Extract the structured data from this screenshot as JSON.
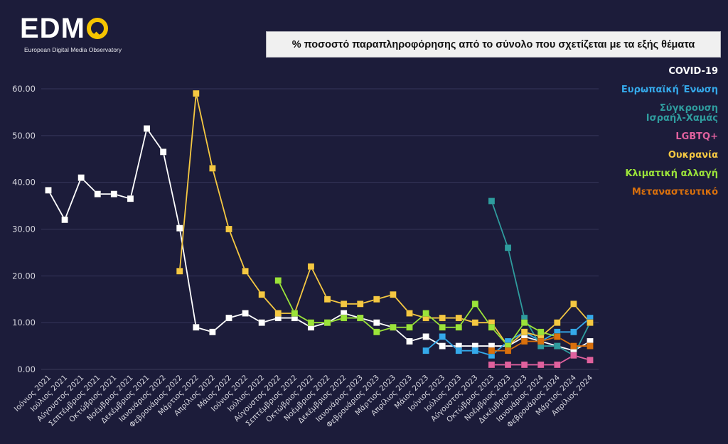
{
  "logo": {
    "text": "EDM",
    "subtitle": "European Digital Media Observatory"
  },
  "chart_data": {
    "type": "line",
    "title": "% ποσοστό παραπληροφόρησης από το σύνολο που σχετίζεται με τα εξής θέματα",
    "xlabel": "",
    "ylabel": "",
    "ylim": [
      0,
      60
    ],
    "yticks": [
      "0.00",
      "10.00",
      "20.00",
      "30.00",
      "40.00",
      "50.00",
      "60.00"
    ],
    "grid": true,
    "legend_position": "right",
    "categories": [
      "Ιούνιος 2021",
      "Ιούλιος 2021",
      "Αύγουστος 2021",
      "Σεπτέμβριος 2021",
      "Οκτώβριος 2021",
      "Νοέμβριος 2021",
      "Δεκέμβριος 2021",
      "Ιανουάριος 2022",
      "Φεβρουάριος 2022",
      "Μάρτιος 2022",
      "Απρίλιος 2022",
      "Μάιος 2022",
      "Ιούνιος 2022",
      "Ιούλιος 2022",
      "Αύγουστος 2022",
      "Σεπτέμβριος 2022",
      "Οκτώβριος 2022",
      "Νοέμβριος 2022",
      "Δεκέμβριος 2022",
      "Ιανουάριος 2023",
      "Φεβρουάριος 2023",
      "Μάρτιος 2023",
      "Απρίλιος 2023",
      "Μάιος 2023",
      "Ιούνιος 2023",
      "Ιούλιος 2023",
      "Αύγουστος 2023",
      "Οκτώβριος 2023",
      "Νοέμβριος 2023",
      "Δεκέμβριος 2023",
      "Ιανουάριος 2024",
      "Φεβρουάριος 2024",
      "Μάρτιος 2024",
      "Απρίλιος 2024"
    ],
    "series": [
      {
        "name": "COVID-19",
        "color": "#ffffff",
        "values": [
          38.3,
          32,
          41,
          37.5,
          37.5,
          36.5,
          51.5,
          46.5,
          30.2,
          9,
          8,
          11,
          12,
          10,
          11,
          11,
          9,
          10,
          12,
          11,
          10,
          9,
          6,
          7,
          5,
          5,
          5,
          5,
          5,
          7,
          6,
          5,
          4,
          6
        ]
      },
      {
        "name": "Ευρωπαϊκή Ένωση",
        "color": "#35a9ea",
        "values": [
          null,
          null,
          null,
          null,
          null,
          null,
          null,
          null,
          null,
          null,
          null,
          null,
          null,
          null,
          null,
          null,
          null,
          null,
          null,
          null,
          null,
          null,
          null,
          4,
          7,
          4,
          4,
          3,
          6,
          8,
          6,
          8,
          8,
          11
        ]
      },
      {
        "name": "Σύγκρουση Ισραήλ-Χαμάς",
        "color": "#2f9c9e",
        "values": [
          null,
          null,
          null,
          null,
          null,
          null,
          null,
          null,
          null,
          null,
          null,
          null,
          null,
          null,
          null,
          null,
          null,
          null,
          null,
          null,
          null,
          null,
          null,
          null,
          null,
          null,
          null,
          36,
          26,
          11,
          5,
          5,
          3,
          10
        ]
      },
      {
        "name": "LGBTQ+",
        "color": "#e0619e",
        "values": [
          null,
          null,
          null,
          null,
          null,
          null,
          null,
          null,
          null,
          null,
          null,
          null,
          null,
          null,
          null,
          null,
          null,
          null,
          null,
          null,
          null,
          null,
          null,
          null,
          null,
          null,
          null,
          1,
          1,
          1,
          1,
          1,
          3,
          2
        ]
      },
      {
        "name": "Ουκρανία",
        "color": "#f5c842",
        "values": [
          null,
          null,
          null,
          null,
          null,
          null,
          null,
          null,
          21,
          59,
          43,
          30,
          21,
          16,
          12,
          12,
          22,
          15,
          14,
          14,
          15,
          16,
          12,
          11,
          11,
          11,
          10,
          10,
          5,
          8,
          7,
          10,
          14,
          10
        ]
      },
      {
        "name": "Κλιματική αλλαγή",
        "color": "#9be33a",
        "values": [
          null,
          null,
          null,
          null,
          null,
          null,
          null,
          null,
          null,
          null,
          null,
          null,
          null,
          null,
          19,
          12,
          10,
          10,
          11,
          11,
          8,
          9,
          9,
          12,
          9,
          9,
          14,
          9,
          5,
          10,
          8,
          7,
          null,
          null
        ]
      },
      {
        "name": "Μεταναστευτικό",
        "color": "#d9700d",
        "values": [
          null,
          null,
          null,
          null,
          null,
          null,
          null,
          null,
          null,
          null,
          null,
          null,
          null,
          null,
          null,
          null,
          null,
          null,
          null,
          null,
          null,
          null,
          null,
          null,
          null,
          null,
          null,
          4,
          4,
          6,
          6,
          7,
          5,
          5
        ]
      }
    ]
  },
  "legend": [
    {
      "label": "COVID-19",
      "color": "#ffffff"
    },
    {
      "label": "Ευρωπαϊκή Ένωση",
      "color": "#35a9ea"
    },
    {
      "label_line1": "Σύγκρουση",
      "label_line2": "Ισραήλ-Χαμάς",
      "color": "#2f9c9e"
    },
    {
      "label": "LGBTQ+",
      "color": "#e0619e"
    },
    {
      "label": "Ουκρανία",
      "color": "#f5c842"
    },
    {
      "label": "Κλιματική αλλαγή",
      "color": "#9be33a"
    },
    {
      "label": "Μεταναστευτικό",
      "color": "#d9700d"
    }
  ]
}
